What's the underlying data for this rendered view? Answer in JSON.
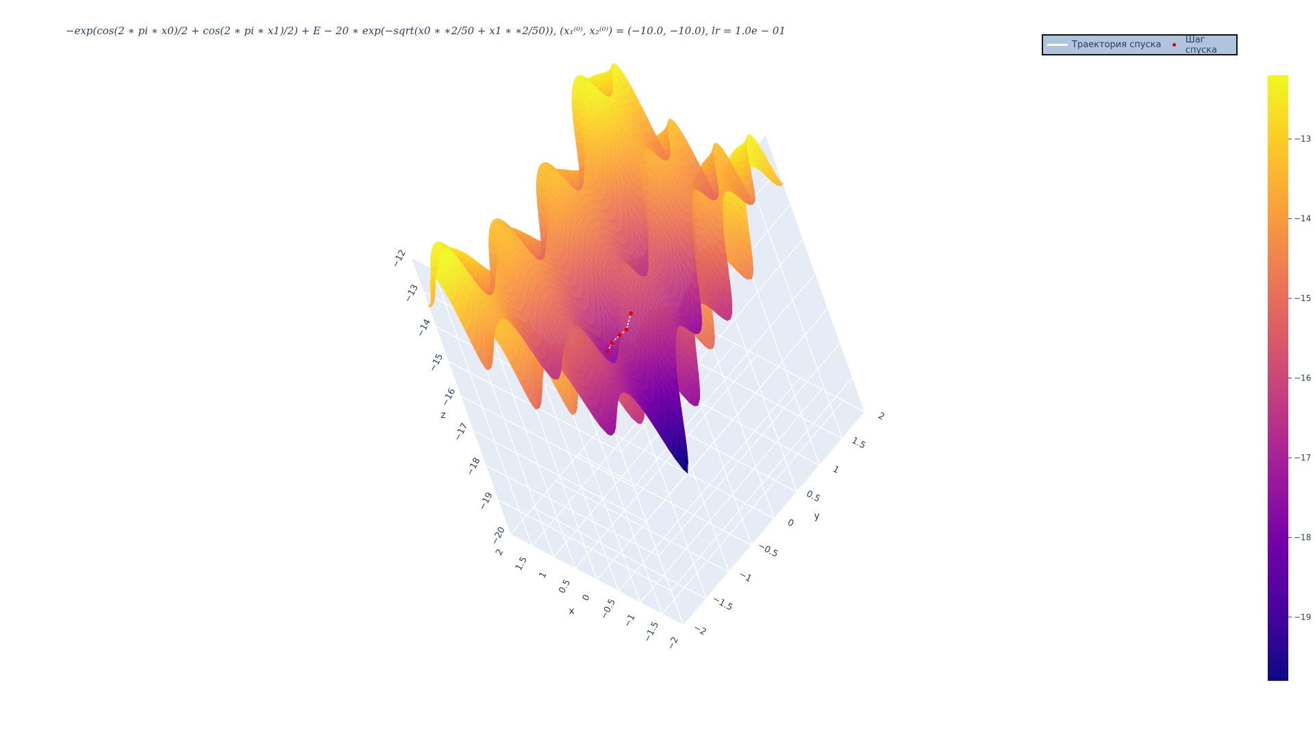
{
  "title_text": "−exp(cos(2 ∗ pi ∗ x0)/2 + cos(2 ∗ pi ∗ x1)/2) + E − 20 ∗ exp(−sqrt(x0 ∗ ∗2/50 + x1 ∗ ∗2/50)), (x₁⁽⁰⁾, x₂⁽⁰⁾) = (−10.0, −10.0), lr = 1.0e − 01",
  "legend": {
    "line_label": "Траектория спуска",
    "dot_label": "Шаг спуска"
  },
  "colors": {
    "scene_bg": "#e5ecf6",
    "grid": "#ffffff",
    "trajectory": "#ffffff",
    "step": "#e00000",
    "colorscale": [
      "#0d0887",
      "#46039f",
      "#7201a8",
      "#9c179e",
      "#bd3786",
      "#d8576b",
      "#ed7953",
      "#fb9f3a",
      "#fdca26",
      "#f0f921"
    ]
  },
  "chart_data": {
    "type": "surface",
    "function": "-exp(cos(2*pi*x0)/2 + cos(2*pi*x1)/2) + E - 20*exp(-sqrt(x0**2/50 + x1**2/50))",
    "x_range": [
      -2,
      2
    ],
    "y_range": [
      -2,
      2
    ],
    "z_range": [
      -20,
      -12
    ],
    "x_ticks": [
      "2",
      "1.5",
      "1",
      "0.5",
      "0",
      "−0.5",
      "−1",
      "−1.5",
      "−2"
    ],
    "y_ticks": [
      "−2",
      "−1.5",
      "−1",
      "−0.5",
      "0",
      "0.5",
      "1",
      "1.5",
      "2"
    ],
    "z_ticks": [
      "−12",
      "−13",
      "−14",
      "−15",
      "−16",
      "−17",
      "−18",
      "−19",
      "−20"
    ],
    "xlabel": "x",
    "ylabel": "y",
    "zlabel": "z",
    "colorbar_ticks": [
      "−13",
      "−14",
      "−15",
      "−16",
      "−17",
      "−18",
      "−19"
    ],
    "colorbar_values": [
      -13,
      -14,
      -15,
      -16,
      -17,
      -18,
      -19
    ],
    "colorbar_range": [
      -19.8,
      -12.2
    ],
    "series": [
      {
        "name": "Траектория спуска",
        "type": "line",
        "x": [
          -1.35,
          -1.1,
          -0.85,
          -0.55,
          -0.2
        ],
        "y": [
          -1.3,
          -1.05,
          -0.75,
          -0.45,
          -0.1
        ],
        "z": [
          -13.6,
          -13.9,
          -14.3,
          -14.8,
          -15.1
        ]
      },
      {
        "name": "Шаг спуска",
        "type": "scatter",
        "x": [
          -1.35,
          -1.1,
          -0.85,
          -0.55,
          -0.2
        ],
        "y": [
          -1.3,
          -1.05,
          -0.75,
          -0.45,
          -0.1
        ],
        "z": [
          -13.6,
          -13.9,
          -14.3,
          -14.8,
          -15.1
        ]
      }
    ]
  }
}
